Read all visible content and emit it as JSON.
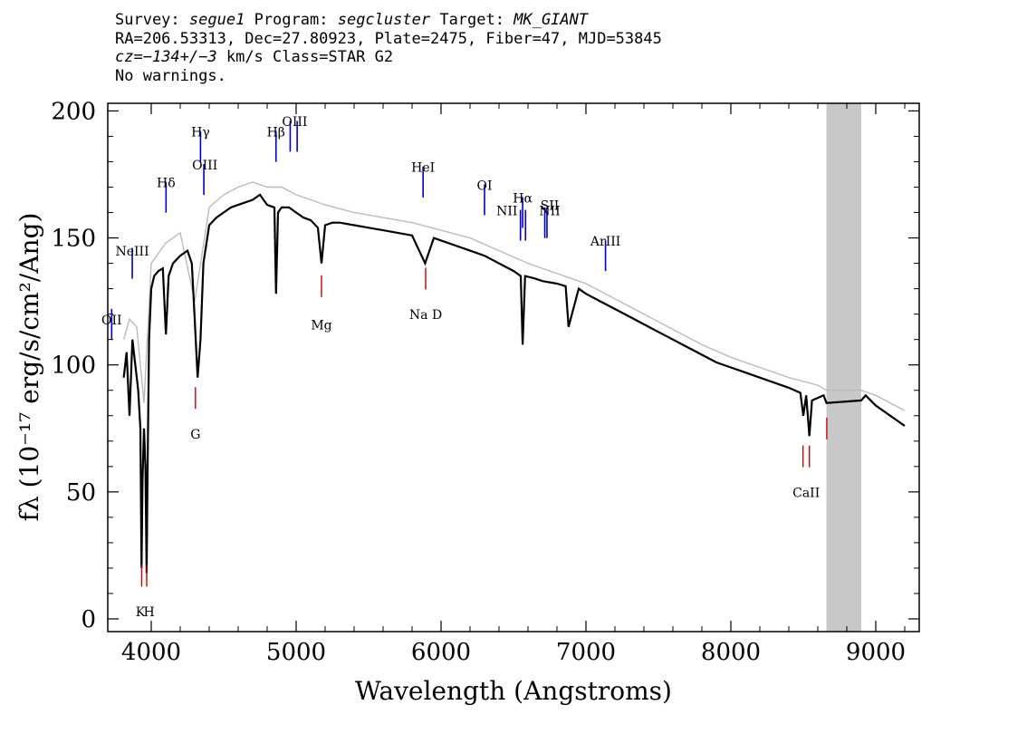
{
  "header": {
    "survey_label": "Survey:",
    "survey": "segue1",
    "program_label": "Program:",
    "program": "segcluster",
    "target_label": "Target:",
    "target": "MK_GIANT",
    "line2": "RA=206.53313, Dec=27.80923, Plate=2475, Fiber=47, MJD=53845",
    "cz_label": "cz=",
    "cz": "−134+/−3",
    "cz_unit": " km/s Class=STAR G2",
    "line4": "No warnings."
  },
  "chart_data": {
    "type": "line",
    "xlabel": "Wavelength (Angstroms)",
    "ylabel": "fλ (10⁻¹⁷ erg/s/cm²/Ang)",
    "xlim": [
      3700,
      9300
    ],
    "ylim": [
      -5,
      203
    ],
    "xticks": [
      4000,
      5000,
      6000,
      7000,
      8000,
      9000
    ],
    "yticks": [
      0,
      50,
      100,
      150,
      200
    ],
    "masked_region": [
      8660,
      8900
    ],
    "series": [
      {
        "color": "#000000",
        "x": [
          3810,
          3830,
          3850,
          3870,
          3890,
          3910,
          3925,
          3933,
          3940,
          3950,
          3960,
          3968,
          3975,
          3985,
          4000,
          4020,
          4050,
          4080,
          4101,
          4120,
          4150,
          4200,
          4250,
          4280,
          4300,
          4320,
          4340,
          4360,
          4400,
          4450,
          4500,
          4550,
          4600,
          4650,
          4700,
          4750,
          4800,
          4850,
          4861,
          4875,
          4900,
          4950,
          5000,
          5050,
          5100,
          5150,
          5175,
          5200,
          5250,
          5300,
          5400,
          5500,
          5600,
          5700,
          5800,
          5890,
          5950,
          6000,
          6100,
          6200,
          6300,
          6400,
          6500,
          6550,
          6563,
          6580,
          6650,
          6700,
          6800,
          6860,
          6880,
          6950,
          7000,
          7100,
          7200,
          7300,
          7400,
          7500,
          7600,
          7700,
          7800,
          7900,
          8000,
          8100,
          8200,
          8300,
          8400,
          8480,
          8500,
          8520,
          8542,
          8560,
          8600,
          8640,
          8660,
          8900,
          8930,
          9000,
          9050,
          9100,
          9150,
          9200
        ],
        "y": [
          95,
          105,
          80,
          110,
          100,
          90,
          75,
          20,
          55,
          75,
          60,
          18,
          60,
          110,
          130,
          135,
          137,
          138,
          112,
          135,
          140,
          143,
          145,
          140,
          118,
          95,
          110,
          140,
          155,
          158,
          160,
          162,
          163,
          164,
          165,
          167,
          163,
          162,
          128,
          160,
          162,
          162,
          160,
          158,
          157,
          154,
          140,
          155,
          156,
          156,
          155,
          154,
          153,
          152,
          151,
          140,
          150,
          149,
          147,
          145,
          143,
          140,
          137,
          135,
          108,
          135,
          134,
          133,
          132,
          131,
          115,
          130,
          128,
          125,
          122,
          119,
          116,
          113,
          110,
          107,
          104,
          101,
          99,
          97,
          95,
          93,
          91,
          89,
          80,
          88,
          72,
          86,
          87,
          88,
          85,
          86,
          88,
          84,
          82,
          80,
          78,
          76
        ]
      },
      {
        "color": "#bbbbbb",
        "x": [
          3810,
          3850,
          3900,
          3950,
          4000,
          4100,
          4200,
          4300,
          4400,
          4500,
          4600,
          4700,
          4800,
          4900,
          5000,
          5100,
          5200,
          5400,
          5600,
          5800,
          6000,
          6200,
          6400,
          6600,
          6800,
          7000,
          7200,
          7400,
          7600,
          7800,
          8000,
          8200,
          8400,
          8600,
          8660,
          8900,
          9000,
          9100,
          9200
        ],
        "y": [
          110,
          118,
          115,
          85,
          140,
          148,
          152,
          125,
          162,
          167,
          170,
          172,
          170,
          170,
          167,
          165,
          163,
          160,
          158,
          156,
          153,
          150,
          145,
          140,
          136,
          132,
          126,
          120,
          114,
          108,
          103,
          99,
          95,
          92,
          90,
          90,
          88,
          85,
          82
        ]
      }
    ],
    "emission_lines": [
      {
        "label": "OII",
        "x": 3727,
        "y": 116
      },
      {
        "label": "NeIII",
        "x": 3869,
        "y": 140
      },
      {
        "label": "Hδ",
        "x": 4102,
        "y": 166
      },
      {
        "label": "Hγ",
        "x": 4340,
        "y": 186
      },
      {
        "label": "OIII",
        "x": 4363,
        "y": 173
      },
      {
        "label": "Hβ",
        "x": 4861,
        "y": 186
      },
      {
        "label": "OIII",
        "x": 4959,
        "y": 190
      },
      {
        "label": "OIII",
        "x": 5007,
        "y": 190
      },
      {
        "label": "HeI",
        "x": 5876,
        "y": 172
      },
      {
        "label": "OI",
        "x": 6300,
        "y": 165
      },
      {
        "label": "NII",
        "x": 6548,
        "y": 155
      },
      {
        "label": "Hα",
        "x": 6563,
        "y": 160
      },
      {
        "label": "NII",
        "x": 6583,
        "y": 155
      },
      {
        "label": "SII",
        "x": 6716,
        "y": 156
      },
      {
        "label": "SII",
        "x": 6731,
        "y": 156
      },
      {
        "label": "ArIII",
        "x": 7135,
        "y": 143
      }
    ],
    "emission_label_texts": [
      {
        "text": "OII",
        "x": 3727,
        "y": 116
      },
      {
        "text": "NeIII",
        "x": 3869,
        "y": 143
      },
      {
        "text": "Hδ",
        "x": 4102,
        "y": 170
      },
      {
        "text": "Hγ",
        "x": 4340,
        "y": 190
      },
      {
        "text": "OIII",
        "x": 4370,
        "y": 177
      },
      {
        "text": "Hβ",
        "x": 4861,
        "y": 190
      },
      {
        "text": "OIII",
        "x": 4990,
        "y": 194
      },
      {
        "text": "HeI",
        "x": 5876,
        "y": 176
      },
      {
        "text": "OI",
        "x": 6300,
        "y": 169
      },
      {
        "text": "NII",
        "x": 6455,
        "y": 159
      },
      {
        "text": "Hα",
        "x": 6563,
        "y": 164
      },
      {
        "text": "NII",
        "x": 6750,
        "y": 159
      },
      {
        "text": "SII",
        "x": 6750,
        "y": 161
      },
      {
        "text": "ArIII",
        "x": 7135,
        "y": 147
      }
    ],
    "absorption_lines": [
      {
        "label": "K",
        "x": 3934,
        "y": 17
      },
      {
        "label": "H",
        "x": 3969,
        "y": 17
      },
      {
        "label": "G",
        "x": 4305,
        "y": 87
      },
      {
        "label": "Mg",
        "x": 5175,
        "y": 131
      },
      {
        "label": "Na D",
        "x": 5894,
        "y": 134
      },
      {
        "label": "CaII",
        "x": 8498,
        "y": 64
      },
      {
        "label": "CaII",
        "x": 8542,
        "y": 64
      },
      {
        "label": "CaII",
        "x": 8662,
        "y": 75
      }
    ],
    "absorption_label_texts": [
      {
        "text": "K",
        "x": 3925,
        "y": 1
      },
      {
        "text": "H",
        "x": 3985,
        "y": 1
      },
      {
        "text": "G",
        "x": 4305,
        "y": 71
      },
      {
        "text": "Mg",
        "x": 5175,
        "y": 114
      },
      {
        "text": "Na D",
        "x": 5894,
        "y": 118
      },
      {
        "text": "CaII",
        "x": 8520,
        "y": 48
      }
    ],
    "emission_color": "#0000cc",
    "absorption_color": "#cc0000",
    "mask_color": "#c8c8c8"
  }
}
